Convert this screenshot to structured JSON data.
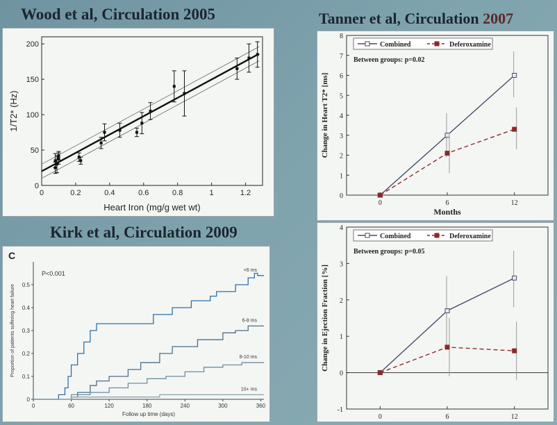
{
  "slide": {
    "accent_color": "#1a2630",
    "titles": {
      "wood": "Wood et al, Circulation 2005",
      "tanner_part1": "Tanner et al, Circulation ",
      "tanner_year": "2007",
      "kirk": "Kirk et al, Circulation 2009"
    }
  },
  "chart_data": [
    {
      "id": "wood",
      "type": "scatter",
      "xlabel": "Heart Iron (mg/g wet wt)",
      "ylabel": "1/T2* (Hz)",
      "xlim": [
        0,
        1.3
      ],
      "ylim": [
        0,
        210
      ],
      "xticks": [
        0,
        0.2,
        0.4,
        0.6,
        0.8,
        1,
        1.2
      ],
      "yticks": [
        0,
        50,
        100,
        150,
        200
      ],
      "points": [
        {
          "x": 0.08,
          "y": 25,
          "err": 8
        },
        {
          "x": 0.08,
          "y": 35,
          "err": 10
        },
        {
          "x": 0.09,
          "y": 30,
          "err": 12
        },
        {
          "x": 0.1,
          "y": 38,
          "err": 8
        },
        {
          "x": 0.1,
          "y": 42,
          "err": 6
        },
        {
          "x": 0.22,
          "y": 40,
          "err": 6
        },
        {
          "x": 0.23,
          "y": 35,
          "err": 5
        },
        {
          "x": 0.35,
          "y": 60,
          "err": 8
        },
        {
          "x": 0.37,
          "y": 75,
          "err": 12
        },
        {
          "x": 0.46,
          "y": 78,
          "err": 10
        },
        {
          "x": 0.56,
          "y": 75,
          "err": 6
        },
        {
          "x": 0.59,
          "y": 88,
          "err": 15
        },
        {
          "x": 0.64,
          "y": 105,
          "err": 12
        },
        {
          "x": 0.78,
          "y": 140,
          "err": 22
        },
        {
          "x": 0.84,
          "y": 130,
          "err": 32
        },
        {
          "x": 1.15,
          "y": 165,
          "err": 15
        },
        {
          "x": 1.22,
          "y": 180,
          "err": 20
        },
        {
          "x": 1.27,
          "y": 185,
          "err": 18
        }
      ],
      "fit": {
        "x": [
          0,
          1.28
        ],
        "y": [
          20,
          186
        ]
      },
      "ci_upper": {
        "x": [
          0,
          1.28
        ],
        "y": [
          30,
          196
        ]
      },
      "ci_lower": {
        "x": [
          0,
          1.28
        ],
        "y": [
          10,
          176
        ]
      }
    },
    {
      "id": "tanner_t2",
      "type": "line",
      "ylabel": "Change in Heart T2* [ms]",
      "xlabel": "Months",
      "categories": [
        "0",
        "6",
        "12"
      ],
      "x": [
        0,
        6,
        12
      ],
      "xlim": [
        -3,
        15
      ],
      "ylim": [
        0,
        8
      ],
      "yticks": [
        0,
        1,
        2,
        3,
        4,
        5,
        6,
        7,
        8
      ],
      "annotation": "Between groups: p=0.02",
      "series": [
        {
          "name": "Combined",
          "values": [
            0,
            3.0,
            6.0
          ],
          "err_low": [
            0,
            1.9,
            4.9
          ],
          "err_high": [
            0,
            4.1,
            7.2
          ],
          "color": "#4a4a66",
          "dash": false
        },
        {
          "name": "Deferoxamine",
          "values": [
            0,
            2.1,
            3.3
          ],
          "err_low": [
            0,
            1.1,
            2.3
          ],
          "err_high": [
            0,
            3.1,
            4.4
          ],
          "color": "#8b2a2a",
          "dash": true
        }
      ]
    },
    {
      "id": "tanner_ef",
      "type": "line",
      "ylabel": "Change in Ejection Fraction [%]",
      "xlabel": "Months",
      "categories": [
        "0",
        "6",
        "12"
      ],
      "x": [
        0,
        6,
        12
      ],
      "xlim": [
        -3,
        15
      ],
      "ylim": [
        -1,
        4
      ],
      "yticks": [
        -1,
        0,
        1,
        2,
        3,
        4
      ],
      "annotation": "Between groups: p=0.05",
      "series": [
        {
          "name": "Combined",
          "values": [
            0,
            1.7,
            2.6
          ],
          "err_low": [
            0,
            0.7,
            1.8
          ],
          "err_high": [
            0,
            2.65,
            3.35
          ],
          "color": "#4a4a66",
          "dash": false
        },
        {
          "name": "Deferoxamine",
          "values": [
            0,
            0.7,
            0.6
          ],
          "err_low": [
            0,
            -0.1,
            -0.2
          ],
          "err_high": [
            0,
            1.5,
            1.4
          ],
          "color": "#8b2a2a",
          "dash": true
        }
      ]
    },
    {
      "id": "kirk",
      "type": "line",
      "panel_label": "C",
      "annotation": "P<0.001",
      "ylabel": "Proportion of patients suffering heart failure",
      "xlabel": "Follow up time (days)",
      "xlim": [
        0,
        365
      ],
      "ylim": [
        0,
        0.6
      ],
      "xticks": [
        0,
        60,
        120,
        180,
        240,
        300,
        360
      ],
      "yticks": [
        0,
        0.1,
        0.2,
        0.3,
        0.4,
        0.5
      ],
      "series": [
        {
          "name": "<6 ms",
          "x": [
            0,
            30,
            40,
            50,
            55,
            60,
            70,
            80,
            90,
            100,
            180,
            190,
            220,
            250,
            280,
            290,
            320,
            340,
            350,
            355,
            365
          ],
          "values": [
            0,
            0,
            0.02,
            0.05,
            0.1,
            0.15,
            0.2,
            0.25,
            0.3,
            0.33,
            0.33,
            0.37,
            0.4,
            0.43,
            0.45,
            0.47,
            0.5,
            0.53,
            0.55,
            0.54,
            0.54
          ]
        },
        {
          "name": "6-8 ms",
          "x": [
            0,
            30,
            60,
            70,
            90,
            100,
            120,
            150,
            170,
            200,
            220,
            260,
            300,
            320,
            340,
            365
          ],
          "values": [
            0,
            0,
            0.01,
            0.03,
            0.06,
            0.08,
            0.1,
            0.13,
            0.16,
            0.2,
            0.23,
            0.26,
            0.29,
            0.3,
            0.32,
            0.32
          ]
        },
        {
          "name": "8-10 ms",
          "x": [
            0,
            30,
            60,
            90,
            120,
            150,
            180,
            210,
            240,
            270,
            300,
            330,
            365
          ],
          "values": [
            0,
            0,
            0.02,
            0.03,
            0.05,
            0.07,
            0.09,
            0.1,
            0.12,
            0.14,
            0.15,
            0.16,
            0.16
          ]
        },
        {
          "name": "10+ ms",
          "x": [
            0,
            30,
            60,
            120,
            200,
            280,
            365
          ],
          "values": [
            0,
            0,
            0.01,
            0.01,
            0.02,
            0.02,
            0.02
          ]
        }
      ]
    }
  ]
}
